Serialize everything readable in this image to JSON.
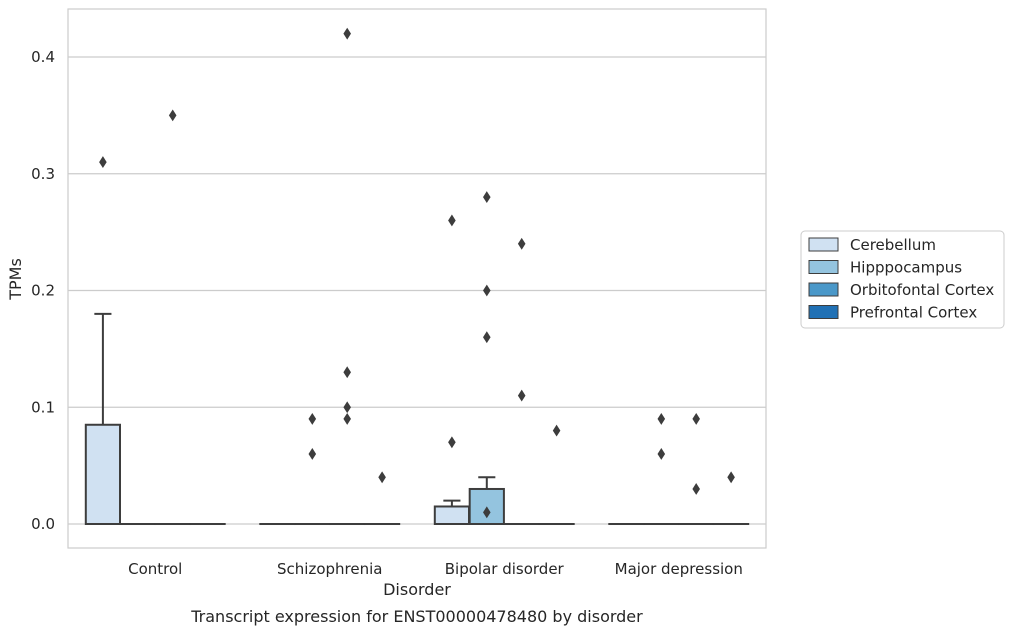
{
  "chart_data": {
    "type": "box",
    "title": "",
    "caption": "Transcript expression for ENST00000478480 by disorder",
    "xlabel": "Disorder",
    "ylabel": "TPMs",
    "ylim": [
      -0.02,
      0.44
    ],
    "yticks": [
      0.0,
      0.1,
      0.2,
      0.3,
      0.4
    ],
    "ytick_labels": [
      "0.0",
      "0.1",
      "0.2",
      "0.3",
      "0.4"
    ],
    "grid": "horizontal",
    "legend_position": "right",
    "categories": [
      "Control",
      "Schizophrenia",
      "Bipolar disorder",
      "Major depression"
    ],
    "series": [
      {
        "name": "Cerebellum",
        "color": "#d0e1f2",
        "boxes": [
          {
            "q1": 0.0,
            "median": 0.0,
            "q3": 0.085,
            "whisker_low": 0.0,
            "whisker_high": 0.18,
            "outliers": [
              0.31
            ]
          },
          {
            "q1": 0.0,
            "median": 0.0,
            "q3": 0.0,
            "whisker_low": 0.0,
            "whisker_high": 0.0,
            "outliers": []
          },
          {
            "q1": 0.0,
            "median": 0.0,
            "q3": 0.015,
            "whisker_low": 0.0,
            "whisker_high": 0.02,
            "outliers": [
              0.07,
              0.26
            ]
          },
          {
            "q1": 0.0,
            "median": 0.0,
            "q3": 0.0,
            "whisker_low": 0.0,
            "whisker_high": 0.0,
            "outliers": []
          }
        ]
      },
      {
        "name": "Hipppocampus",
        "color": "#94c4df",
        "boxes": [
          {
            "q1": 0.0,
            "median": 0.0,
            "q3": 0.0,
            "whisker_low": 0.0,
            "whisker_high": 0.0,
            "outliers": []
          },
          {
            "q1": 0.0,
            "median": 0.0,
            "q3": 0.0,
            "whisker_low": 0.0,
            "whisker_high": 0.0,
            "outliers": [
              0.09,
              0.06
            ]
          },
          {
            "q1": 0.0,
            "median": 0.0,
            "q3": 0.03,
            "whisker_low": 0.0,
            "whisker_high": 0.04,
            "outliers": [
              0.28,
              0.2,
              0.16,
              0.01
            ]
          },
          {
            "q1": 0.0,
            "median": 0.0,
            "q3": 0.0,
            "whisker_low": 0.0,
            "whisker_high": 0.0,
            "outliers": [
              0.09,
              0.06
            ]
          }
        ]
      },
      {
        "name": "Orbitofontal Cortex",
        "color": "#4a98c9",
        "boxes": [
          {
            "q1": 0.0,
            "median": 0.0,
            "q3": 0.0,
            "whisker_low": 0.0,
            "whisker_high": 0.0,
            "outliers": [
              0.35
            ]
          },
          {
            "q1": 0.0,
            "median": 0.0,
            "q3": 0.0,
            "whisker_low": 0.0,
            "whisker_high": 0.0,
            "outliers": [
              0.1,
              0.42,
              0.13,
              0.09
            ]
          },
          {
            "q1": 0.0,
            "median": 0.0,
            "q3": 0.0,
            "whisker_low": 0.0,
            "whisker_high": 0.0,
            "outliers": [
              0.24,
              0.11
            ]
          },
          {
            "q1": 0.0,
            "median": 0.0,
            "q3": 0.0,
            "whisker_low": 0.0,
            "whisker_high": 0.0,
            "outliers": [
              0.09,
              0.03
            ]
          }
        ]
      },
      {
        "name": "Prefrontal Cortex",
        "color": "#2171b5",
        "boxes": [
          {
            "q1": 0.0,
            "median": 0.0,
            "q3": 0.0,
            "whisker_low": 0.0,
            "whisker_high": 0.0,
            "outliers": []
          },
          {
            "q1": 0.0,
            "median": 0.0,
            "q3": 0.0,
            "whisker_low": 0.0,
            "whisker_high": 0.0,
            "outliers": [
              0.04
            ]
          },
          {
            "q1": 0.0,
            "median": 0.0,
            "q3": 0.0,
            "whisker_low": 0.0,
            "whisker_high": 0.0,
            "outliers": [
              0.08
            ]
          },
          {
            "q1": 0.0,
            "median": 0.0,
            "q3": 0.0,
            "whisker_low": 0.0,
            "whisker_high": 0.0,
            "outliers": [
              0.04
            ]
          }
        ]
      }
    ]
  }
}
